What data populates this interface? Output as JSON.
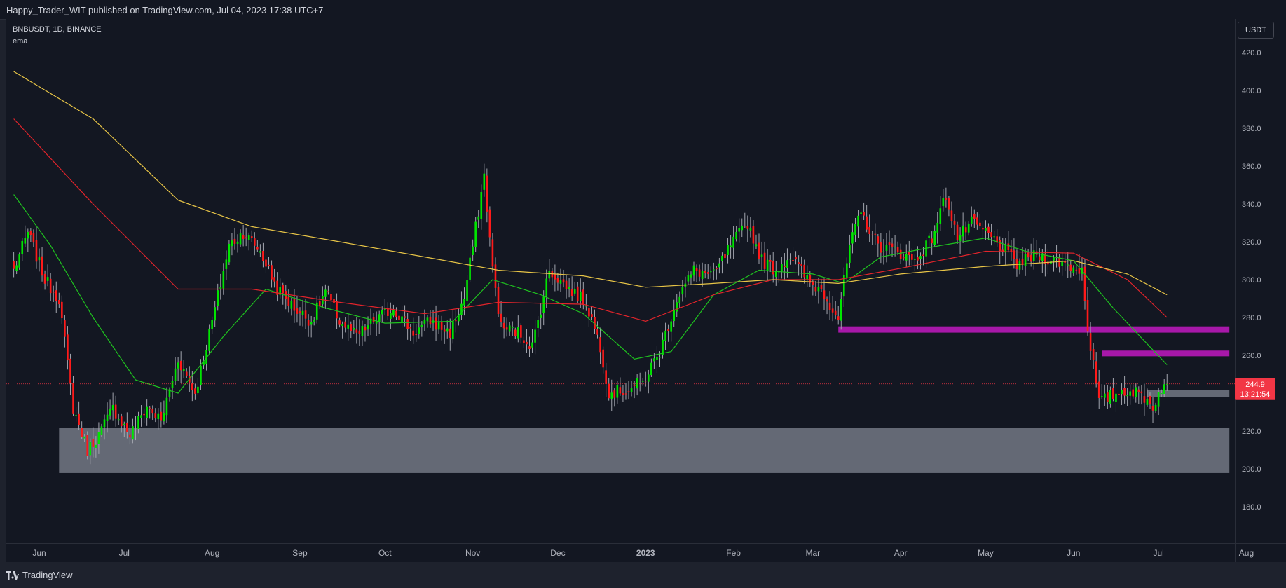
{
  "header": {
    "published": "Happy_Trader_WIT published on TradingView.com, Jul 04, 2023 17:38 UTC+7"
  },
  "legend": {
    "symbol": "BNBUSDT, 1D, BINANCE",
    "indicator": "ema"
  },
  "currency_button": "USDT",
  "footer": {
    "brand": "TradingView"
  },
  "price_label": {
    "price": "244.9",
    "countdown": "13:21:54",
    "color": "#f23645"
  },
  "colors": {
    "up": "#00e600",
    "down": "#ff1a1a",
    "ema_fast": "#1fc21f",
    "ema_mid": "#e3242b",
    "ema_slow": "#e8c547",
    "zone_gray": "#808591",
    "zone_magenta": "#b818b8"
  },
  "chart_data": {
    "type": "candlestick",
    "symbol": "BNBUSDT",
    "interval": "1D",
    "exchange": "BINANCE",
    "ylim": [
      170,
      430
    ],
    "y_ticks": [
      "420.0",
      "400.0",
      "380.0",
      "360.0",
      "340.0",
      "320.0",
      "300.0",
      "280.0",
      "260.0",
      "220.0",
      "200.0",
      "180.0"
    ],
    "x_ticks": [
      "Jun",
      "Jul",
      "Aug",
      "Sep",
      "Oct",
      "Nov",
      "Dec",
      "2023",
      "Feb",
      "Mar",
      "Apr",
      "May",
      "Jun",
      "Jul",
      "Aug"
    ],
    "current_price": 244.9,
    "anchors": [
      [
        "2022-05-23",
        305
      ],
      [
        "2022-05-28",
        325
      ],
      [
        "2022-06-03",
        300
      ],
      [
        "2022-06-08",
        290
      ],
      [
        "2022-06-13",
        232
      ],
      [
        "2022-06-18",
        210
      ],
      [
        "2022-06-22",
        218
      ],
      [
        "2022-06-27",
        232
      ],
      [
        "2022-07-03",
        218
      ],
      [
        "2022-07-09",
        233
      ],
      [
        "2022-07-14",
        225
      ],
      [
        "2022-07-20",
        258
      ],
      [
        "2022-07-26",
        240
      ],
      [
        "2022-08-01",
        278
      ],
      [
        "2022-08-07",
        318
      ],
      [
        "2022-08-12",
        325
      ],
      [
        "2022-08-18",
        315
      ],
      [
        "2022-08-24",
        295
      ],
      [
        "2022-08-30",
        285
      ],
      [
        "2022-09-05",
        278
      ],
      [
        "2022-09-10",
        294
      ],
      [
        "2022-09-15",
        278
      ],
      [
        "2022-09-21",
        270
      ],
      [
        "2022-09-27",
        278
      ],
      [
        "2022-10-04",
        285
      ],
      [
        "2022-10-11",
        272
      ],
      [
        "2022-10-17",
        278
      ],
      [
        "2022-10-24",
        272
      ],
      [
        "2022-10-29",
        290
      ],
      [
        "2022-11-05",
        355
      ],
      [
        "2022-11-08",
        305
      ],
      [
        "2022-11-11",
        275
      ],
      [
        "2022-11-17",
        272
      ],
      [
        "2022-11-22",
        265
      ],
      [
        "2022-11-28",
        305
      ],
      [
        "2022-12-05",
        295
      ],
      [
        "2022-12-11",
        288
      ],
      [
        "2022-12-16",
        265
      ],
      [
        "2022-12-19",
        240
      ],
      [
        "2022-12-26",
        242
      ],
      [
        "2022-12-31",
        246
      ],
      [
        "2023-01-06",
        262
      ],
      [
        "2023-01-12",
        290
      ],
      [
        "2023-01-18",
        305
      ],
      [
        "2023-01-25",
        302
      ],
      [
        "2023-01-31",
        318
      ],
      [
        "2023-02-06",
        330
      ],
      [
        "2023-02-11",
        310
      ],
      [
        "2023-02-16",
        305
      ],
      [
        "2023-02-21",
        313
      ],
      [
        "2023-02-28",
        298
      ],
      [
        "2023-03-04",
        295
      ],
      [
        "2023-03-10",
        280
      ],
      [
        "2023-03-14",
        318
      ],
      [
        "2023-03-18",
        335
      ],
      [
        "2023-03-24",
        318
      ],
      [
        "2023-03-31",
        315
      ],
      [
        "2023-04-06",
        310
      ],
      [
        "2023-04-12",
        322
      ],
      [
        "2023-04-17",
        345
      ],
      [
        "2023-04-21",
        322
      ],
      [
        "2023-04-26",
        330
      ],
      [
        "2023-05-01",
        325
      ],
      [
        "2023-05-06",
        318
      ],
      [
        "2023-05-12",
        308
      ],
      [
        "2023-05-19",
        313
      ],
      [
        "2023-05-26",
        310
      ],
      [
        "2023-05-31",
        307
      ],
      [
        "2023-06-04",
        305
      ],
      [
        "2023-06-06",
        275
      ],
      [
        "2023-06-10",
        235
      ],
      [
        "2023-06-16",
        240
      ],
      [
        "2023-06-20",
        242
      ],
      [
        "2023-06-26",
        238
      ],
      [
        "2023-06-29",
        233
      ],
      [
        "2023-07-02",
        243
      ],
      [
        "2023-07-04",
        244.9
      ]
    ],
    "ema_fast": [
      [
        "2022-05-23",
        345
      ],
      [
        "2022-06-05",
        318
      ],
      [
        "2022-06-20",
        280
      ],
      [
        "2022-07-05",
        247
      ],
      [
        "2022-07-20",
        240
      ],
      [
        "2022-08-05",
        270
      ],
      [
        "2022-08-20",
        295
      ],
      [
        "2022-09-10",
        285
      ],
      [
        "2022-10-01",
        277
      ],
      [
        "2022-10-25",
        278
      ],
      [
        "2022-11-08",
        300
      ],
      [
        "2022-11-25",
        292
      ],
      [
        "2022-12-10",
        282
      ],
      [
        "2022-12-28",
        258
      ],
      [
        "2023-01-10",
        262
      ],
      [
        "2023-01-25",
        292
      ],
      [
        "2023-02-10",
        305
      ],
      [
        "2023-03-01",
        303
      ],
      [
        "2023-03-12",
        298
      ],
      [
        "2023-03-25",
        312
      ],
      [
        "2023-04-15",
        318
      ],
      [
        "2023-05-01",
        322
      ],
      [
        "2023-05-15",
        315
      ],
      [
        "2023-06-01",
        310
      ],
      [
        "2023-06-15",
        285
      ],
      [
        "2023-07-04",
        255
      ]
    ],
    "ema_mid": [
      [
        "2022-05-23",
        385
      ],
      [
        "2022-06-20",
        340
      ],
      [
        "2022-07-20",
        295
      ],
      [
        "2022-08-15",
        295
      ],
      [
        "2022-09-15",
        288
      ],
      [
        "2022-10-15",
        282
      ],
      [
        "2022-11-10",
        288
      ],
      [
        "2022-12-10",
        287
      ],
      [
        "2023-01-01",
        278
      ],
      [
        "2023-01-25",
        292
      ],
      [
        "2023-02-15",
        300
      ],
      [
        "2023-03-10",
        300
      ],
      [
        "2023-04-01",
        306
      ],
      [
        "2023-05-01",
        315
      ],
      [
        "2023-06-01",
        314
      ],
      [
        "2023-06-20",
        300
      ],
      [
        "2023-07-04",
        280
      ]
    ],
    "ema_slow": [
      [
        "2022-05-23",
        410
      ],
      [
        "2022-06-20",
        385
      ],
      [
        "2022-07-20",
        342
      ],
      [
        "2022-08-15",
        328
      ],
      [
        "2022-09-15",
        320
      ],
      [
        "2022-10-15",
        312
      ],
      [
        "2022-11-10",
        305
      ],
      [
        "2022-12-10",
        302
      ],
      [
        "2023-01-01",
        296
      ],
      [
        "2023-01-25",
        298
      ],
      [
        "2023-02-15",
        300
      ],
      [
        "2023-03-10",
        298
      ],
      [
        "2023-04-01",
        303
      ],
      [
        "2023-05-01",
        307
      ],
      [
        "2023-06-01",
        310
      ],
      [
        "2023-06-20",
        303
      ],
      [
        "2023-07-04",
        292
      ]
    ],
    "zones": [
      {
        "from": "2022-06-08",
        "to": "2023-07-26",
        "low": 197.8,
        "high": 221.8,
        "color": "gray"
      },
      {
        "from": "2023-03-10",
        "to": "2023-07-26",
        "low": 272,
        "high": 275.3,
        "color": "magenta"
      },
      {
        "from": "2023-06-11",
        "to": "2023-07-26",
        "low": 259.5,
        "high": 262.5,
        "color": "magenta"
      },
      {
        "from": "2023-06-27",
        "to": "2023-07-26",
        "low": 238,
        "high": 241.5,
        "color": "gray"
      }
    ]
  }
}
